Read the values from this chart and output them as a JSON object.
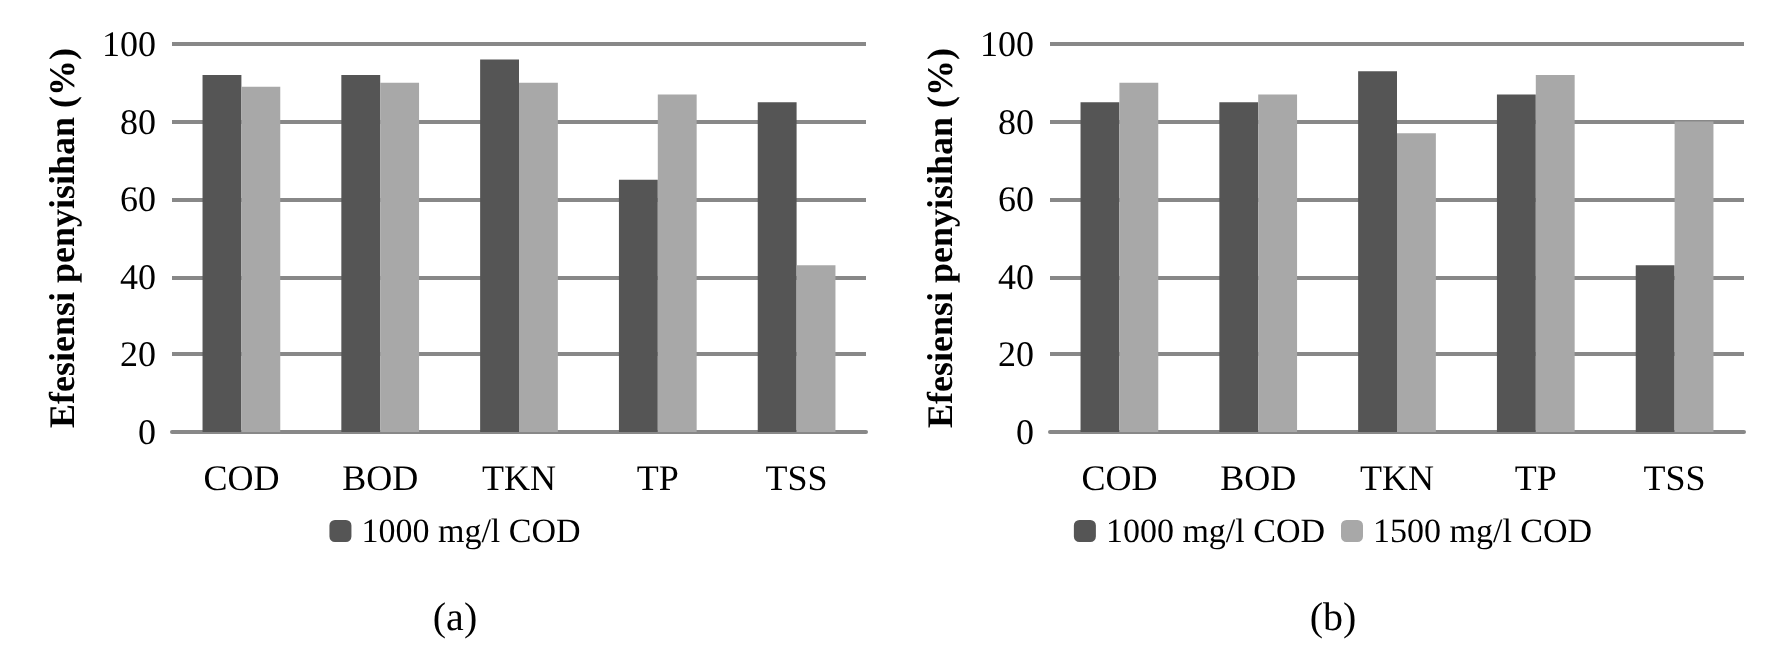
{
  "chart_data": [
    {
      "type": "bar",
      "ylabel": "Efesiensi penyisihan (%)",
      "categories": [
        "COD",
        "BOD",
        "TKN",
        "TP",
        "TSS"
      ],
      "series": [
        {
          "name": "1000 mg/l COD",
          "color": "#555555",
          "values": [
            92,
            92,
            96,
            65,
            85
          ]
        },
        {
          "color": "#a8a8a8",
          "values": [
            89,
            90,
            90,
            87,
            43
          ]
        }
      ],
      "ylim": [
        0,
        100
      ],
      "yticks": [
        0,
        20,
        40,
        60,
        80,
        100
      ],
      "grid": "y",
      "legend": "bottom",
      "annotations": [
        "(a)"
      ]
    },
    {
      "type": "bar",
      "ylabel": "Efesiensi penyisihan (%)",
      "categories": [
        "COD",
        "BOD",
        "TKN",
        "TP",
        "TSS"
      ],
      "series": [
        {
          "name": "1000 mg/l COD",
          "color": "#555555",
          "values": [
            85,
            85,
            93,
            87,
            43
          ]
        },
        {
          "name": "1500 mg/l COD",
          "color": "#a8a8a8",
          "values": [
            90,
            87,
            77,
            92,
            80
          ]
        }
      ],
      "ylim": [
        0,
        100
      ],
      "yticks": [
        0,
        20,
        40,
        60,
        80,
        100
      ],
      "grid": "y",
      "legend": "bottom",
      "annotations": [
        "(b)"
      ]
    }
  ]
}
